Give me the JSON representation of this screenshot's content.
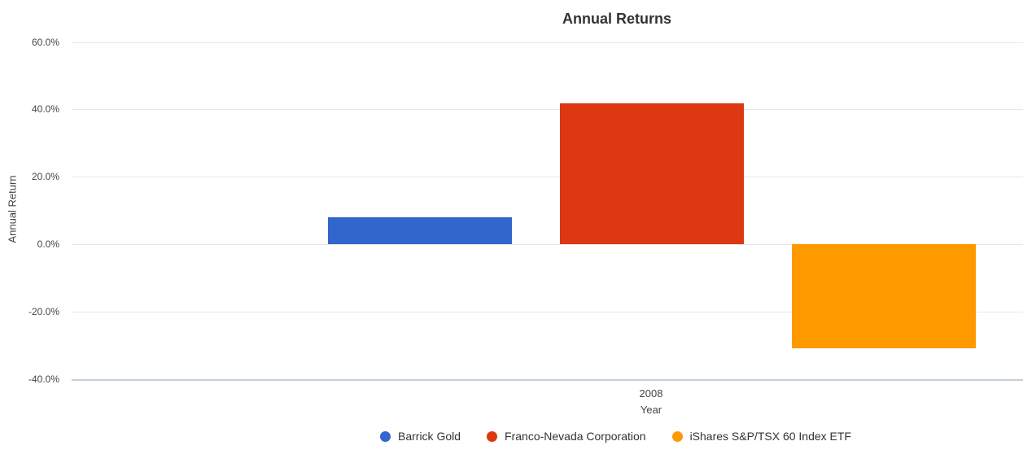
{
  "chart_data": {
    "type": "bar",
    "title": "Annual Returns",
    "xlabel": "Year",
    "ylabel": "Annual Return",
    "categories": [
      "2008"
    ],
    "series": [
      {
        "name": "Barrick Gold",
        "values": [
          8.0
        ],
        "color": "#3366CC"
      },
      {
        "name": "Franco-Nevada Corporation",
        "values": [
          41.9
        ],
        "color": "#DC3912"
      },
      {
        "name": "iShares S&P/TSX 60 Index ETF",
        "values": [
          -30.9
        ],
        "color": "#FF9900"
      }
    ],
    "ylim": [
      -40,
      60
    ],
    "y_ticks": {
      "labels": [
        "60.0%",
        "40.0%",
        "20.0%",
        "0.0%",
        "-20.0%",
        "-40.0%"
      ],
      "values": [
        60,
        40,
        20,
        0,
        -20,
        -40
      ]
    },
    "grid": true,
    "legend_position": "bottom",
    "background_color": "#FFFFFF",
    "gridline_color": "#E8E8E8",
    "baseline_color": "#C3CED8",
    "tick_text_color": "#444444",
    "title_color": "#333333"
  }
}
